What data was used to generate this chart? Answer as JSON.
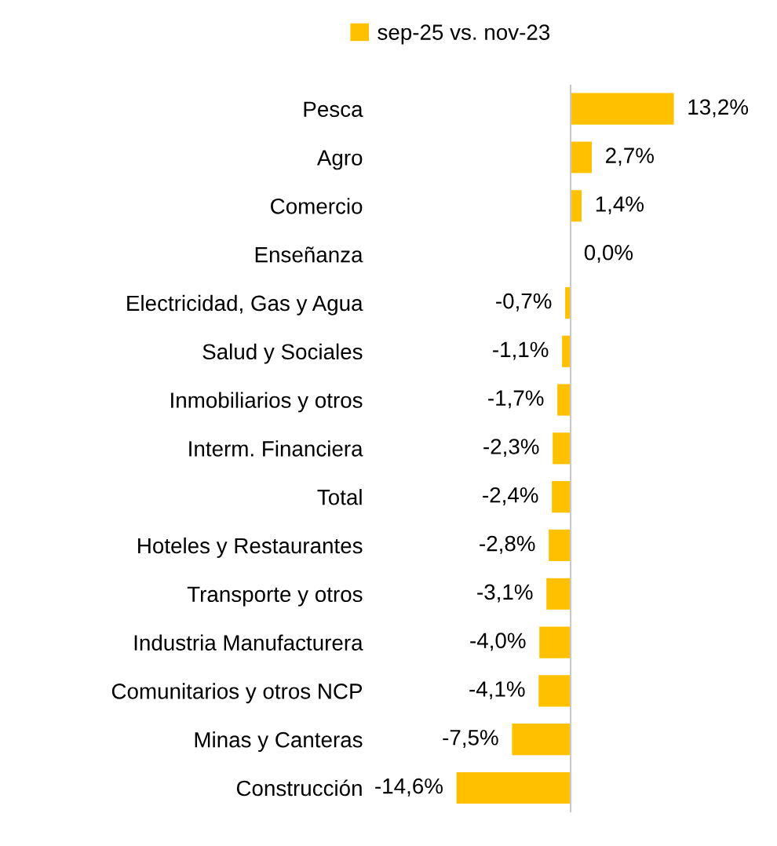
{
  "chart_data": {
    "type": "bar",
    "orientation": "horizontal",
    "legend": "top",
    "grid": false,
    "tick_labels": "y",
    "categories": [
      "Pesca",
      "Agro",
      "Comercio",
      "Enseñanza",
      "Electricidad, Gas y Agua",
      "Salud y Sociales",
      "Inmobiliarios y otros",
      "Interm. Financiera",
      "Total",
      "Hoteles y Restaurantes",
      "Transporte y otros",
      "Industria Manufacturera",
      "Comunitarios y otros NCP",
      "Minas y Canteras",
      "Construcción"
    ],
    "series": [
      {
        "name": "sep-25 vs. nov-23",
        "color": "#ffc000",
        "values": [
          13.2,
          2.7,
          1.4,
          0.0,
          -0.7,
          -1.1,
          -1.7,
          -2.3,
          -2.4,
          -2.8,
          -3.1,
          -4.0,
          -4.1,
          -7.5,
          -14.6
        ],
        "value_labels": [
          "13,2%",
          "2,7%",
          "1,4%",
          "0,0%",
          "-0,7%",
          "-1,1%",
          "-1,7%",
          "-2,3%",
          "-2,4%",
          "-2,8%",
          "-3,1%",
          "-4,0%",
          "-4,1%",
          "-7,5%",
          "-14,6%"
        ]
      }
    ]
  }
}
